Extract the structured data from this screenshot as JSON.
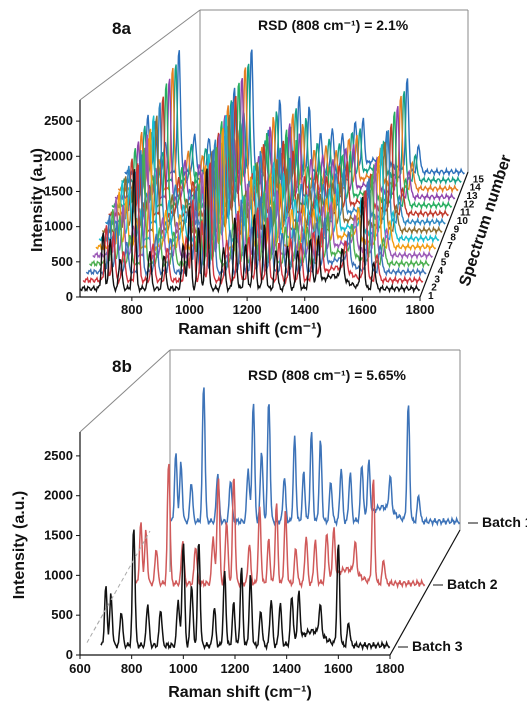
{
  "chart_data": [
    {
      "type": "line",
      "panel_label": "8a",
      "annotation": "RSD (808 cm⁻¹) = 2.1%",
      "xlabel": "Raman shift (cm⁻¹)",
      "ylabel": "Intensity (a.u)",
      "zlabel": "Spectrum number",
      "xlim": [
        620,
        1800
      ],
      "ylim": [
        0,
        2800
      ],
      "x_ticks": [
        "800",
        "1000",
        "1200",
        "1400",
        "1600",
        "1800"
      ],
      "y_ticks": [
        "0",
        "500",
        "1000",
        "1500",
        "2000",
        "2500"
      ],
      "z_ticks": [
        "1",
        "2",
        "3",
        "4",
        "5",
        "6",
        "7",
        "8",
        "9",
        "10",
        "11",
        "12",
        "13",
        "14",
        "15"
      ],
      "z_tick_texts": [
        "1",
        "2",
        "3",
        "4",
        "5",
        "6",
        "7",
        "8",
        "9",
        "10",
        "11",
        "12",
        "13",
        "14",
        "15"
      ],
      "peaks": [
        {
          "x": 700,
          "y": 780
        },
        {
          "x": 725,
          "y": 720
        },
        {
          "x": 760,
          "y": 450
        },
        {
          "x": 808,
          "y": 1750
        },
        {
          "x": 862,
          "y": 550
        },
        {
          "x": 912,
          "y": 500
        },
        {
          "x": 978,
          "y": 650
        },
        {
          "x": 1000,
          "y": 1200
        },
        {
          "x": 1032,
          "y": 900
        },
        {
          "x": 1060,
          "y": 1750
        },
        {
          "x": 1118,
          "y": 600
        },
        {
          "x": 1158,
          "y": 1000
        },
        {
          "x": 1195,
          "y": 620
        },
        {
          "x": 1225,
          "y": 1050
        },
        {
          "x": 1260,
          "y": 900
        },
        {
          "x": 1300,
          "y": 560
        },
        {
          "x": 1340,
          "y": 620
        },
        {
          "x": 1375,
          "y": 540
        },
        {
          "x": 1420,
          "y": 700
        },
        {
          "x": 1447,
          "y": 650
        },
        {
          "x": 1530,
          "y": 420
        },
        {
          "x": 1600,
          "y": 1300
        },
        {
          "x": 1640,
          "y": 380
        }
      ],
      "series": [
        {
          "z": 1,
          "color": "#111111",
          "scale": 1.0
        },
        {
          "z": 2,
          "color": "#d0343c",
          "scale": 0.98
        },
        {
          "z": 3,
          "color": "#3d73b8",
          "scale": 1.02
        },
        {
          "z": 4,
          "color": "#4caf50",
          "scale": 0.97
        },
        {
          "z": 5,
          "color": "#9b59b6",
          "scale": 1.01
        },
        {
          "z": 6,
          "color": "#f39c12",
          "scale": 0.99
        },
        {
          "z": 7,
          "color": "#17becf",
          "scale": 1.03
        },
        {
          "z": 8,
          "color": "#8c6d31",
          "scale": 0.96
        },
        {
          "z": 9,
          "color": "#2e86c1",
          "scale": 1.0
        },
        {
          "z": 10,
          "color": "#c0392b",
          "scale": 0.98
        },
        {
          "z": 11,
          "color": "#27ae60",
          "scale": 1.02
        },
        {
          "z": 12,
          "color": "#8e44ad",
          "scale": 0.99
        },
        {
          "z": 13,
          "color": "#e67e22",
          "scale": 1.01
        },
        {
          "z": 14,
          "color": "#16a085",
          "scale": 0.97
        },
        {
          "z": 15,
          "color": "#2c6fbb",
          "scale": 1.02
        }
      ]
    },
    {
      "type": "line",
      "panel_label": "8b",
      "annotation": "RSD (808 cm⁻¹) = 5.65%",
      "xlabel": "Raman shift (cm⁻¹)",
      "ylabel": "Intensity (a.u.)",
      "xlim": [
        600,
        1800
      ],
      "ylim": [
        0,
        2800
      ],
      "x_ticks": [
        "600",
        "800",
        "1000",
        "1200",
        "1400",
        "1600",
        "1800"
      ],
      "y_ticks": [
        "0",
        "500",
        "1000",
        "1500",
        "2000",
        "2500"
      ],
      "peaks": [
        {
          "x": 700,
          "y": 750
        },
        {
          "x": 720,
          "y": 650
        },
        {
          "x": 760,
          "y": 450
        },
        {
          "x": 808,
          "y": 1550
        },
        {
          "x": 862,
          "y": 550
        },
        {
          "x": 912,
          "y": 480
        },
        {
          "x": 980,
          "y": 600
        },
        {
          "x": 1000,
          "y": 1350
        },
        {
          "x": 1032,
          "y": 800
        },
        {
          "x": 1060,
          "y": 1350
        },
        {
          "x": 1120,
          "y": 500
        },
        {
          "x": 1160,
          "y": 950
        },
        {
          "x": 1195,
          "y": 550
        },
        {
          "x": 1225,
          "y": 1000
        },
        {
          "x": 1260,
          "y": 900
        },
        {
          "x": 1300,
          "y": 450
        },
        {
          "x": 1340,
          "y": 600
        },
        {
          "x": 1375,
          "y": 550
        },
        {
          "x": 1420,
          "y": 620
        },
        {
          "x": 1447,
          "y": 600
        },
        {
          "x": 1530,
          "y": 380
        },
        {
          "x": 1600,
          "y": 1300
        },
        {
          "x": 1640,
          "y": 300
        }
      ],
      "series": [
        {
          "name": "Batch 1",
          "color": "#3d73b8",
          "scale": 1.12
        },
        {
          "name": "Batch 2",
          "color": "#d05a5a",
          "scale": 1.0
        },
        {
          "name": "Batch 3",
          "color": "#111111",
          "scale": 0.97
        }
      ]
    }
  ]
}
